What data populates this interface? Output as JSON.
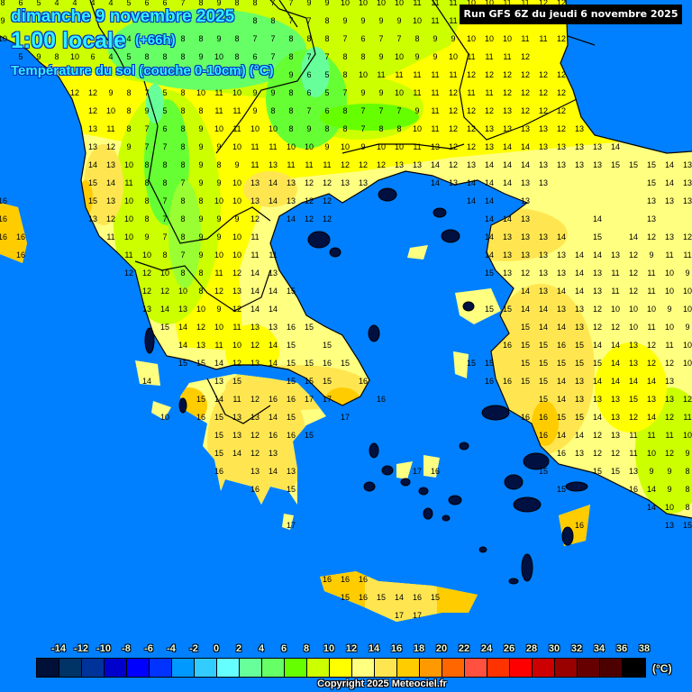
{
  "header": {
    "date": "dimanche 9 novembre 2025",
    "time": "1:00 locale",
    "lead": "(+66h)",
    "parameter": "Température du sol (couche 0-10cm) (°C)",
    "run": "Run GFS 6Z du jeudi 6 novembre 2025"
  },
  "colors": {
    "sea": "#0080ff",
    "missing_land": "#001040",
    "border": "#000000",
    "value_text": "#000000"
  },
  "legend": {
    "labels": [
      "-14",
      "-12",
      "-10",
      "-8",
      "-6",
      "-4",
      "-2",
      "0",
      "2",
      "4",
      "6",
      "8",
      "10",
      "12",
      "14",
      "16",
      "18",
      "20",
      "22",
      "24",
      "26",
      "28",
      "30",
      "32",
      "34",
      "36",
      "38"
    ],
    "colors": [
      "#001038",
      "#003366",
      "#003399",
      "#0000cc",
      "#0000ff",
      "#0033ff",
      "#0099ff",
      "#33ccff",
      "#66ffff",
      "#66ff99",
      "#66ff66",
      "#66ff00",
      "#ccff00",
      "#ffff00",
      "#ffff80",
      "#ffe650",
      "#ffcc00",
      "#ff9900",
      "#ff6600",
      "#ff5040",
      "#ff3300",
      "#ff0000",
      "#cc0000",
      "#990000",
      "#660000",
      "#4d0000",
      "#000000"
    ],
    "unit": "(°C)"
  },
  "copyright": "Copyright 2025 Meteociel.fr",
  "grid_values": [
    [
      8,
      6,
      5,
      4,
      4,
      4,
      4,
      5,
      6,
      6,
      7,
      8,
      9,
      8,
      8,
      7,
      7,
      9,
      9,
      10,
      10,
      10,
      10,
      11,
      11,
      11,
      10,
      10,
      11,
      11,
      12,
      12,
      null,
      null,
      null,
      null,
      null,
      null,
      null
    ],
    [
      9,
      null,
      null,
      null,
      null,
      null,
      null,
      null,
      null,
      null,
      null,
      null,
      null,
      null,
      8,
      8,
      7,
      7,
      8,
      9,
      9,
      9,
      9,
      10,
      11,
      11,
      null,
      null,
      null,
      null,
      null,
      null,
      null,
      null,
      null,
      null,
      null,
      null,
      null
    ],
    [
      10,
      null,
      null,
      null,
      null,
      null,
      null,
      4,
      null,
      null,
      8,
      8,
      9,
      8,
      7,
      7,
      8,
      8,
      8,
      7,
      6,
      7,
      7,
      8,
      9,
      9,
      10,
      10,
      10,
      11,
      11,
      12,
      null,
      null,
      null,
      null,
      null,
      null,
      null
    ],
    [
      null,
      5,
      9,
      8,
      10,
      6,
      4,
      5,
      8,
      8,
      8,
      9,
      10,
      8,
      6,
      7,
      8,
      7,
      7,
      8,
      8,
      9,
      10,
      9,
      9,
      10,
      11,
      11,
      11,
      12,
      null,
      null,
      null,
      null,
      null,
      null,
      null,
      null,
      null
    ],
    [
      null,
      null,
      null,
      null,
      null,
      null,
      null,
      null,
      null,
      null,
      null,
      null,
      null,
      null,
      null,
      null,
      9,
      6,
      5,
      8,
      10,
      11,
      11,
      11,
      11,
      11,
      12,
      12,
      12,
      12,
      12,
      12,
      null,
      null,
      null,
      null,
      null,
      null,
      null
    ],
    [
      null,
      null,
      null,
      null,
      12,
      12,
      9,
      8,
      7,
      5,
      8,
      10,
      11,
      10,
      9,
      9,
      8,
      6,
      5,
      7,
      9,
      9,
      10,
      11,
      11,
      12,
      11,
      11,
      12,
      12,
      12,
      12,
      null,
      null,
      null,
      null,
      null,
      null,
      null
    ],
    [
      null,
      null,
      null,
      null,
      null,
      12,
      10,
      8,
      9,
      5,
      8,
      8,
      11,
      11,
      9,
      8,
      8,
      7,
      6,
      8,
      7,
      7,
      7,
      9,
      11,
      12,
      12,
      12,
      13,
      12,
      12,
      12,
      null,
      null,
      null,
      null,
      null,
      null,
      null
    ],
    [
      null,
      null,
      null,
      null,
      null,
      13,
      11,
      8,
      7,
      6,
      8,
      9,
      10,
      11,
      10,
      10,
      8,
      9,
      8,
      8,
      7,
      8,
      8,
      10,
      11,
      12,
      12,
      13,
      13,
      13,
      13,
      12,
      13,
      null,
      null,
      null,
      null,
      null,
      null
    ],
    [
      null,
      null,
      null,
      null,
      null,
      13,
      12,
      9,
      7,
      7,
      8,
      9,
      9,
      10,
      11,
      11,
      10,
      10,
      9,
      10,
      9,
      10,
      10,
      11,
      13,
      12,
      12,
      13,
      14,
      14,
      13,
      13,
      13,
      13,
      14,
      null,
      null,
      null,
      null
    ],
    [
      null,
      null,
      null,
      null,
      null,
      14,
      13,
      10,
      8,
      8,
      8,
      9,
      8,
      9,
      11,
      13,
      11,
      11,
      11,
      12,
      12,
      12,
      13,
      13,
      14,
      12,
      13,
      14,
      14,
      14,
      13,
      13,
      13,
      13,
      15,
      15,
      15,
      14,
      13
    ],
    [
      null,
      null,
      null,
      null,
      null,
      15,
      14,
      11,
      8,
      8,
      7,
      9,
      9,
      10,
      13,
      14,
      13,
      12,
      12,
      13,
      13,
      null,
      null,
      null,
      14,
      13,
      14,
      14,
      14,
      13,
      13,
      null,
      null,
      null,
      null,
      null,
      15,
      14,
      13
    ],
    [
      16,
      null,
      null,
      null,
      null,
      15,
      13,
      10,
      8,
      7,
      8,
      8,
      10,
      10,
      13,
      14,
      13,
      12,
      12,
      null,
      null,
      null,
      null,
      null,
      null,
      null,
      14,
      14,
      null,
      13,
      null,
      null,
      null,
      null,
      null,
      null,
      13,
      13,
      13
    ],
    [
      16,
      null,
      null,
      null,
      null,
      13,
      12,
      10,
      8,
      7,
      8,
      9,
      9,
      9,
      12,
      null,
      14,
      12,
      12,
      null,
      null,
      null,
      null,
      null,
      null,
      null,
      null,
      14,
      14,
      13,
      null,
      null,
      null,
      14,
      null,
      null,
      13,
      null,
      null
    ],
    [
      16,
      16,
      null,
      null,
      null,
      null,
      11,
      10,
      9,
      7,
      8,
      9,
      9,
      10,
      11,
      null,
      null,
      null,
      null,
      null,
      null,
      null,
      null,
      null,
      null,
      null,
      null,
      14,
      13,
      13,
      13,
      14,
      null,
      15,
      null,
      14,
      12,
      13,
      12
    ],
    [
      null,
      16,
      null,
      null,
      null,
      null,
      null,
      11,
      10,
      8,
      7,
      9,
      10,
      10,
      11,
      11,
      null,
      null,
      null,
      null,
      null,
      null,
      null,
      null,
      null,
      null,
      null,
      14,
      13,
      13,
      13,
      13,
      14,
      14,
      13,
      12,
      9,
      11,
      11
    ],
    [
      null,
      null,
      null,
      null,
      null,
      null,
      null,
      12,
      12,
      10,
      8,
      8,
      11,
      12,
      14,
      13,
      null,
      null,
      null,
      null,
      null,
      null,
      null,
      null,
      null,
      null,
      null,
      15,
      13,
      12,
      13,
      13,
      14,
      13,
      11,
      12,
      11,
      10,
      9
    ],
    [
      null,
      null,
      null,
      null,
      null,
      null,
      null,
      null,
      12,
      12,
      10,
      8,
      12,
      13,
      14,
      14,
      15,
      null,
      null,
      null,
      null,
      null,
      null,
      null,
      null,
      null,
      null,
      null,
      null,
      14,
      13,
      14,
      14,
      13,
      11,
      12,
      11,
      10,
      10
    ],
    [
      null,
      null,
      null,
      null,
      null,
      null,
      null,
      null,
      13,
      14,
      13,
      10,
      9,
      12,
      14,
      14,
      null,
      null,
      null,
      null,
      null,
      null,
      null,
      null,
      null,
      null,
      null,
      15,
      15,
      14,
      14,
      13,
      13,
      12,
      10,
      10,
      10,
      9,
      10
    ],
    [
      null,
      null,
      null,
      null,
      null,
      null,
      null,
      null,
      null,
      15,
      14,
      12,
      10,
      11,
      13,
      13,
      16,
      15,
      null,
      null,
      null,
      null,
      null,
      null,
      null,
      null,
      null,
      null,
      null,
      15,
      14,
      14,
      13,
      12,
      12,
      10,
      11,
      10,
      9
    ],
    [
      null,
      null,
      null,
      null,
      null,
      null,
      null,
      null,
      null,
      null,
      14,
      13,
      11,
      10,
      12,
      14,
      15,
      null,
      15,
      null,
      null,
      null,
      null,
      null,
      null,
      null,
      null,
      null,
      16,
      15,
      15,
      16,
      15,
      14,
      14,
      13,
      12,
      11,
      10
    ],
    [
      null,
      null,
      null,
      null,
      null,
      null,
      null,
      null,
      null,
      null,
      15,
      15,
      14,
      12,
      13,
      14,
      15,
      15,
      16,
      15,
      null,
      null,
      null,
      null,
      null,
      null,
      15,
      15,
      null,
      15,
      15,
      15,
      15,
      15,
      14,
      13,
      12,
      12,
      10
    ],
    [
      null,
      null,
      null,
      null,
      null,
      null,
      null,
      null,
      14,
      null,
      null,
      null,
      13,
      15,
      null,
      null,
      15,
      15,
      15,
      null,
      16,
      null,
      null,
      null,
      null,
      null,
      null,
      16,
      16,
      15,
      15,
      14,
      13,
      14,
      14,
      14,
      14,
      13,
      null
    ],
    [
      null,
      null,
      null,
      null,
      null,
      null,
      null,
      null,
      null,
      null,
      null,
      15,
      14,
      11,
      12,
      16,
      16,
      17,
      17,
      null,
      null,
      16,
      null,
      null,
      null,
      null,
      null,
      null,
      null,
      null,
      15,
      14,
      13,
      13,
      13,
      15,
      13,
      13,
      12
    ],
    [
      null,
      null,
      null,
      null,
      null,
      null,
      null,
      null,
      null,
      10,
      null,
      16,
      15,
      13,
      13,
      14,
      15,
      null,
      null,
      17,
      null,
      null,
      null,
      null,
      null,
      null,
      null,
      null,
      null,
      16,
      16,
      15,
      15,
      14,
      13,
      12,
      14,
      12,
      11
    ],
    [
      null,
      null,
      null,
      null,
      null,
      null,
      null,
      null,
      null,
      null,
      null,
      null,
      15,
      13,
      12,
      16,
      16,
      15,
      null,
      null,
      null,
      null,
      null,
      null,
      null,
      null,
      null,
      null,
      null,
      null,
      16,
      14,
      14,
      12,
      13,
      11,
      11,
      11,
      10
    ],
    [
      null,
      null,
      null,
      null,
      null,
      null,
      null,
      null,
      null,
      null,
      null,
      null,
      15,
      14,
      12,
      13,
      null,
      null,
      null,
      null,
      null,
      null,
      null,
      null,
      null,
      null,
      null,
      null,
      null,
      null,
      null,
      16,
      13,
      12,
      12,
      11,
      10,
      12,
      9
    ],
    [
      null,
      null,
      null,
      null,
      null,
      null,
      null,
      null,
      null,
      null,
      null,
      null,
      16,
      null,
      13,
      14,
      13,
      null,
      null,
      null,
      null,
      null,
      null,
      17,
      16,
      null,
      null,
      null,
      null,
      null,
      15,
      null,
      null,
      15,
      15,
      13,
      9,
      9,
      8
    ],
    [
      null,
      null,
      null,
      null,
      null,
      null,
      null,
      null,
      null,
      null,
      null,
      null,
      null,
      null,
      16,
      null,
      15,
      null,
      null,
      null,
      null,
      null,
      null,
      null,
      null,
      null,
      null,
      null,
      null,
      null,
      null,
      15,
      null,
      null,
      null,
      16,
      14,
      9,
      8
    ],
    [
      null,
      null,
      null,
      null,
      null,
      null,
      null,
      null,
      null,
      null,
      null,
      null,
      null,
      null,
      null,
      null,
      null,
      null,
      null,
      null,
      null,
      null,
      null,
      null,
      null,
      null,
      null,
      null,
      null,
      null,
      null,
      null,
      null,
      null,
      null,
      null,
      14,
      10,
      8
    ],
    [
      null,
      null,
      null,
      null,
      null,
      null,
      null,
      null,
      null,
      null,
      null,
      null,
      null,
      null,
      null,
      null,
      17,
      null,
      null,
      null,
      null,
      null,
      null,
      null,
      null,
      null,
      null,
      null,
      null,
      null,
      null,
      null,
      16,
      null,
      null,
      null,
      null,
      13,
      15
    ],
    [],
    [],
    [
      null,
      null,
      null,
      null,
      null,
      null,
      null,
      null,
      null,
      null,
      null,
      null,
      null,
      null,
      null,
      null,
      null,
      null,
      16,
      16,
      16
    ],
    [
      null,
      null,
      null,
      null,
      null,
      null,
      null,
      null,
      null,
      null,
      null,
      null,
      null,
      null,
      null,
      null,
      null,
      null,
      null,
      15,
      16,
      15,
      14,
      16,
      15
    ],
    [
      null,
      null,
      null,
      null,
      null,
      null,
      null,
      null,
      null,
      null,
      null,
      null,
      null,
      null,
      null,
      null,
      null,
      null,
      null,
      null,
      null,
      null,
      17,
      17
    ]
  ]
}
